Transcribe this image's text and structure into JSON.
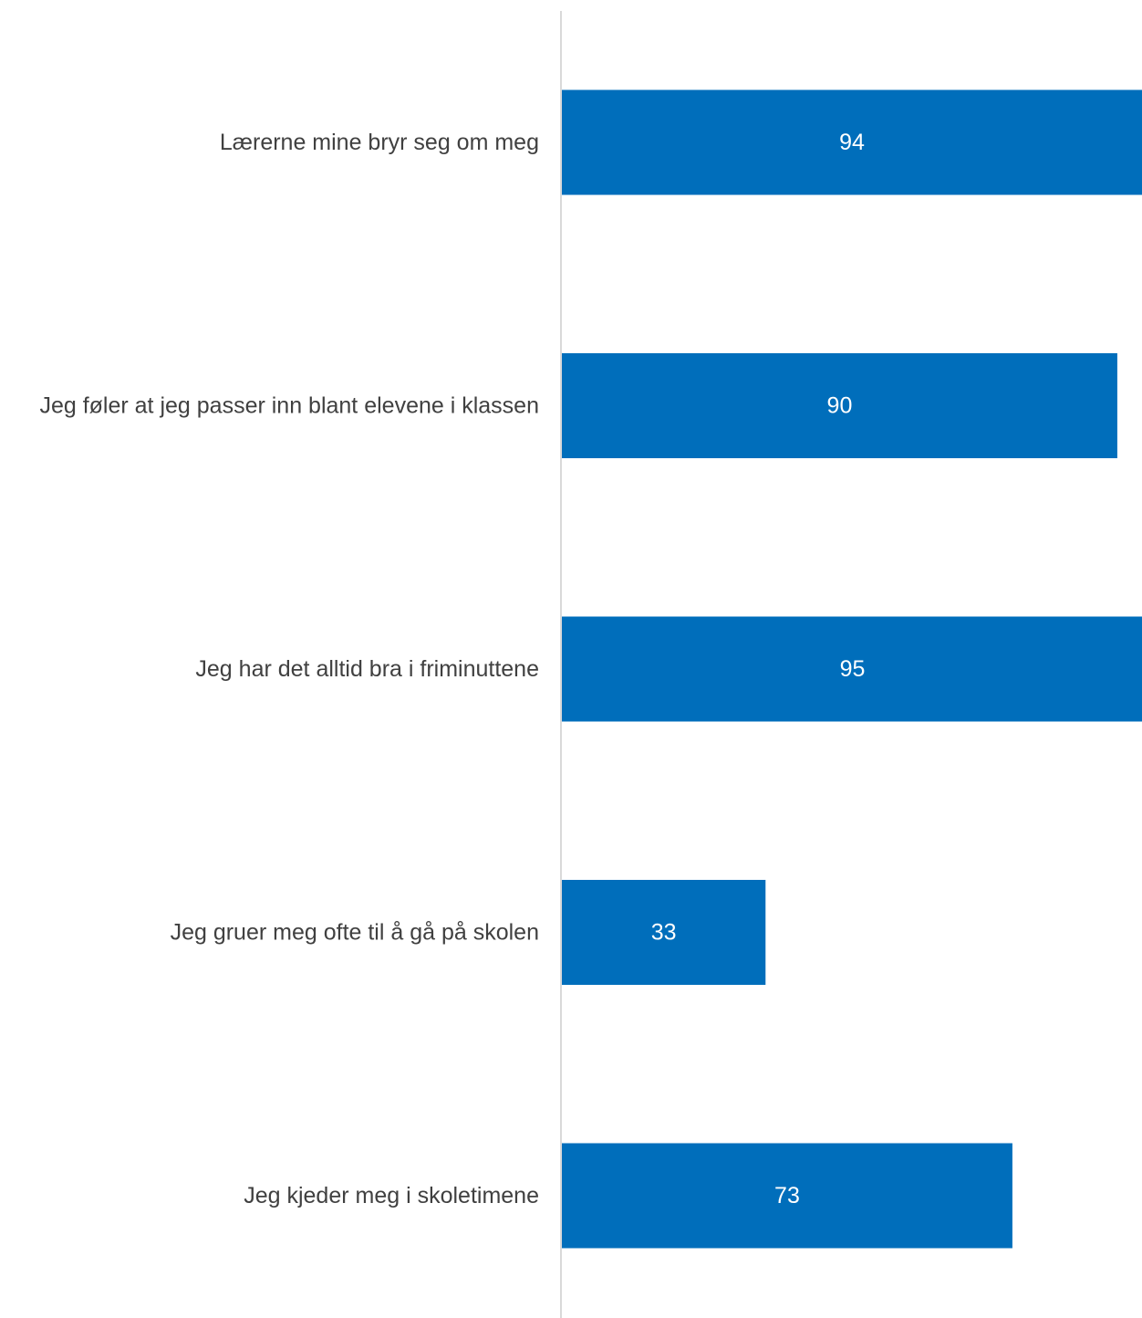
{
  "chart_data": {
    "type": "bar",
    "orientation": "horizontal",
    "categories": [
      "Lærerne mine bryr seg om meg",
      "Jeg føler at jeg passer inn blant elevene i klassen",
      "Jeg har det alltid bra i friminuttene",
      "Jeg gruer meg ofte til å gå på skolen",
      "Jeg kjeder meg i skoletimene"
    ],
    "values": [
      94,
      90,
      95,
      33,
      73
    ],
    "xlim": [
      0,
      94
    ],
    "data_labels": true,
    "grid": false,
    "legend": "none",
    "bar_color": "#006EBB",
    "axis_color": "#D9D9D9",
    "label_color": "#404040",
    "value_label_color": "#FFFFFF"
  }
}
